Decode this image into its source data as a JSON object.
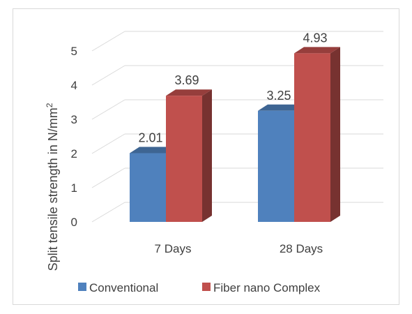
{
  "chart_data": {
    "type": "bar",
    "style": "3d-clustered-column",
    "categories": [
      "7 Days",
      "28 Days"
    ],
    "series": [
      {
        "name": "Conventional",
        "values": [
          2.01,
          3.25
        ],
        "color": "#4F81BD"
      },
      {
        "name": "Fiber nano Complex",
        "values": [
          3.69,
          4.93
        ],
        "color": "#C0504D"
      }
    ],
    "data_labels": [
      [
        "2.01",
        "3.25"
      ],
      [
        "3.69",
        "4.93"
      ]
    ],
    "ylabel": "Split tensile strength in N/mm",
    "ylabel_superscript": "2",
    "yticks": [
      0,
      1,
      2,
      3,
      4,
      5
    ],
    "ylim": [
      0,
      5
    ],
    "grid": true,
    "legend": "bottom"
  }
}
